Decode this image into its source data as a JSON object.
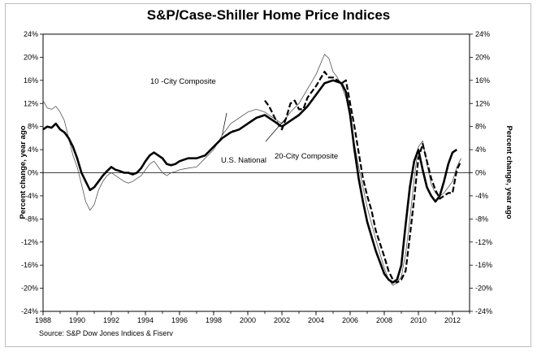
{
  "chart_data": {
    "type": "line",
    "title": "S&P/Case-Shiller Home Price Indices",
    "ylabel": "Percent change, year ago",
    "ylabel_right": "Percent change, year ago",
    "ylim": [
      -24,
      24
    ],
    "yticks": [
      "24%",
      "20%",
      "16%",
      "12%",
      "8%",
      "4%",
      "0%",
      "-4%",
      "-8%",
      "-12%",
      "-16%",
      "-20%",
      "-24%"
    ],
    "ytick_values": [
      24,
      20,
      16,
      12,
      8,
      4,
      0,
      -4,
      -8,
      -12,
      -16,
      -20,
      -24
    ],
    "xlim": [
      1988,
      2013
    ],
    "xticks": [
      "1988",
      "1990",
      "1992",
      "1994",
      "1996",
      "1998",
      "2000",
      "2002",
      "2004",
      "2006",
      "2008",
      "2010",
      "2012"
    ],
    "xtick_values": [
      1988,
      1990,
      1992,
      1994,
      1996,
      1998,
      2000,
      2002,
      2004,
      2006,
      2008,
      2010,
      2012
    ],
    "grid": false,
    "source": "Source: S&P Dow Jones Indices & Fiserv",
    "series": [
      {
        "name": "10 -City Composite",
        "style": "thin",
        "x": [
          1988.0,
          1988.25,
          1988.5,
          1988.75,
          1989.0,
          1989.25,
          1989.5,
          1989.75,
          1990.0,
          1990.25,
          1990.5,
          1990.75,
          1991.0,
          1991.25,
          1991.5,
          1991.75,
          1992.0,
          1992.25,
          1992.5,
          1992.75,
          1993.0,
          1993.25,
          1993.5,
          1993.75,
          1994.0,
          1994.25,
          1994.5,
          1994.75,
          1995.0,
          1995.25,
          1995.5,
          1995.75,
          1996.0,
          1996.5,
          1997.0,
          1997.5,
          1998.0,
          1998.5,
          1999.0,
          1999.5,
          2000.0,
          2000.5,
          2001.0,
          2001.5,
          2002.0,
          2002.5,
          2003.0,
          2003.5,
          2004.0,
          2004.5,
          2004.75,
          2005.0,
          2005.25,
          2005.5,
          2005.75,
          2006.0,
          2006.25,
          2006.5,
          2006.75,
          2007.0,
          2007.5,
          2008.0,
          2008.25,
          2008.5,
          2008.75,
          2009.0,
          2009.25,
          2009.5,
          2009.75,
          2010.0,
          2010.25,
          2010.5,
          2010.75,
          2011.0,
          2011.25,
          2011.5,
          2011.75,
          2012.0,
          2012.25,
          2012.5
        ],
        "values": [
          12.5,
          11.2,
          11.0,
          11.5,
          10.5,
          9.0,
          6.0,
          3.0,
          1.0,
          -2.0,
          -5.0,
          -6.5,
          -5.5,
          -3.0,
          -1.5,
          -0.5,
          0.0,
          -0.5,
          -1.0,
          -1.5,
          -1.8,
          -1.5,
          -1.0,
          -0.5,
          0.5,
          1.5,
          2.0,
          1.0,
          0.0,
          -0.5,
          0.0,
          0.2,
          0.5,
          0.8,
          1.0,
          2.5,
          4.0,
          6.5,
          8.5,
          9.5,
          10.5,
          11.0,
          10.5,
          9.5,
          8.5,
          10.5,
          12.0,
          14.5,
          17.0,
          20.5,
          19.8,
          17.5,
          16.5,
          15.0,
          13.0,
          9.5,
          5.0,
          1.0,
          -2.5,
          -6.0,
          -11.5,
          -16.5,
          -18.5,
          -19.5,
          -19.0,
          -18.0,
          -14.0,
          -8.0,
          -1.0,
          4.5,
          5.5,
          1.5,
          -2.0,
          -3.5,
          -4.0,
          -3.5,
          -2.5,
          -1.5,
          1.0,
          2.5
        ]
      },
      {
        "name": "U.S. National",
        "style": "thick",
        "x": [
          1988.0,
          1988.25,
          1988.5,
          1988.75,
          1989.0,
          1989.25,
          1989.5,
          1989.75,
          1990.0,
          1990.25,
          1990.5,
          1990.75,
          1991.0,
          1991.25,
          1991.5,
          1991.75,
          1992.0,
          1992.25,
          1992.5,
          1992.75,
          1993.0,
          1993.25,
          1993.5,
          1993.75,
          1994.0,
          1994.25,
          1994.5,
          1994.75,
          1995.0,
          1995.25,
          1995.5,
          1995.75,
          1996.0,
          1996.5,
          1997.0,
          1997.5,
          1998.0,
          1998.5,
          1999.0,
          1999.5,
          2000.0,
          2000.5,
          2001.0,
          2001.5,
          2002.0,
          2002.5,
          2003.0,
          2003.5,
          2004.0,
          2004.5,
          2005.0,
          2005.5,
          2005.75,
          2006.0,
          2006.25,
          2006.5,
          2006.75,
          2007.0,
          2007.5,
          2008.0,
          2008.25,
          2008.5,
          2008.75,
          2009.0,
          2009.25,
          2009.5,
          2009.75,
          2010.0,
          2010.25,
          2010.5,
          2010.75,
          2011.0,
          2011.25,
          2011.5,
          2011.75,
          2012.0,
          2012.25
        ],
        "values": [
          7.5,
          8.0,
          7.8,
          8.5,
          7.5,
          7.0,
          6.0,
          4.5,
          2.5,
          0.0,
          -1.5,
          -3.0,
          -2.5,
          -1.5,
          -0.5,
          0.3,
          1.0,
          0.5,
          0.3,
          0.0,
          0.0,
          -0.3,
          0.0,
          0.8,
          2.0,
          3.0,
          3.5,
          3.0,
          2.5,
          1.5,
          1.3,
          1.5,
          2.0,
          2.5,
          2.5,
          3.0,
          4.5,
          6.0,
          7.0,
          7.5,
          8.5,
          9.5,
          10.0,
          9.0,
          8.0,
          9.0,
          10.0,
          11.5,
          13.5,
          15.5,
          16.0,
          15.5,
          14.0,
          10.0,
          4.0,
          -1.0,
          -5.0,
          -8.5,
          -13.5,
          -17.5,
          -18.5,
          -19.0,
          -18.5,
          -16.0,
          -9.0,
          -2.5,
          2.0,
          4.0,
          0.5,
          -2.5,
          -4.0,
          -5.0,
          -4.0,
          -1.5,
          1.5,
          3.5,
          4.0
        ]
      },
      {
        "name": "20-City Composite",
        "style": "dashed",
        "x": [
          2001.0,
          2001.25,
          2001.5,
          2001.75,
          2002.0,
          2002.25,
          2002.5,
          2002.75,
          2003.0,
          2003.25,
          2003.5,
          2004.0,
          2004.5,
          2004.75,
          2005.0,
          2005.25,
          2005.5,
          2005.75,
          2006.0,
          2006.25,
          2006.5,
          2006.75,
          2007.0,
          2007.25,
          2007.5,
          2008.0,
          2008.25,
          2008.5,
          2008.75,
          2009.0,
          2009.25,
          2009.5,
          2009.75,
          2010.0,
          2010.25,
          2010.5,
          2010.75,
          2011.0,
          2011.25,
          2011.5,
          2011.75,
          2012.0,
          2012.25,
          2012.5
        ],
        "values": [
          12.5,
          11.5,
          10.0,
          8.5,
          7.5,
          9.5,
          12.0,
          12.5,
          11.0,
          11.0,
          13.0,
          15.0,
          17.5,
          16.5,
          16.5,
          16.0,
          15.5,
          16.0,
          12.0,
          8.0,
          3.5,
          -1.0,
          -4.0,
          -6.5,
          -10.0,
          -14.5,
          -17.0,
          -18.5,
          -19.0,
          -18.5,
          -17.0,
          -11.0,
          -4.5,
          2.5,
          5.0,
          2.0,
          -1.0,
          -3.0,
          -4.5,
          -4.0,
          -3.5,
          -3.5,
          0.5,
          2.0
        ]
      }
    ],
    "annotations": [
      {
        "text": "10 -City Composite",
        "points_to": "10 -City Composite"
      },
      {
        "text": "U.S. National",
        "points_to": "U.S. National"
      },
      {
        "text": "20-City Composite",
        "points_to": "20-City Composite"
      }
    ]
  }
}
